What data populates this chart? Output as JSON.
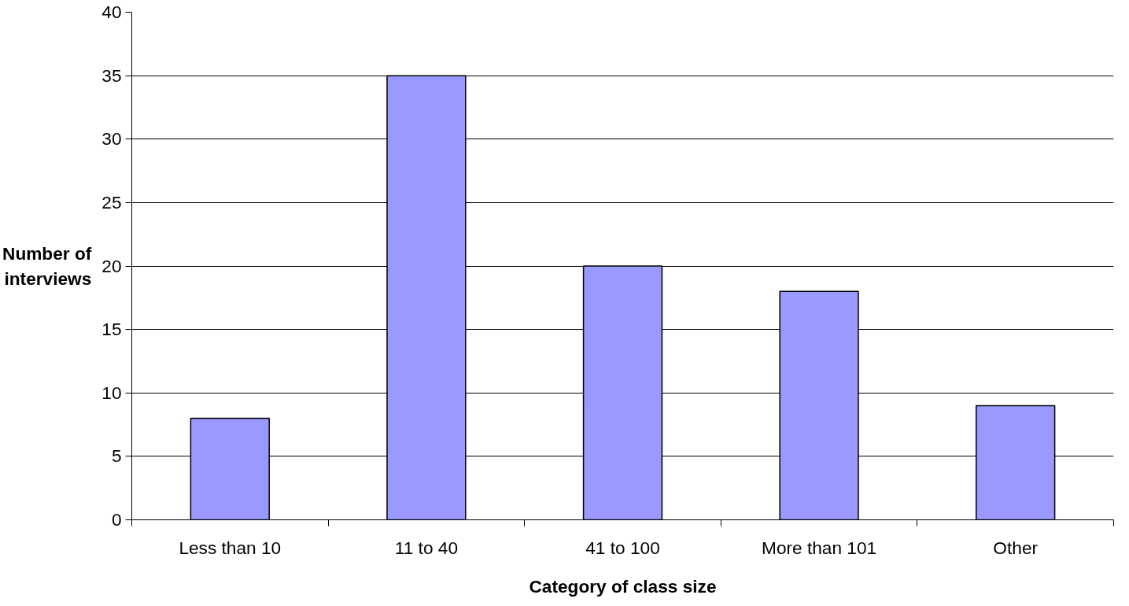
{
  "chart_data": {
    "type": "bar",
    "xlabel": "Category of class size",
    "ylabel": "Number of interviews",
    "categories": [
      "Less than 10",
      "11 to 40",
      "41 to 100",
      "More than 101",
      "Other"
    ],
    "values": [
      8,
      35,
      20,
      18,
      9
    ],
    "color": "#9999ff",
    "ylim": [
      0,
      40
    ],
    "yticks": [
      0,
      5,
      10,
      15,
      20,
      25,
      30,
      35,
      40
    ],
    "grid": "y"
  }
}
